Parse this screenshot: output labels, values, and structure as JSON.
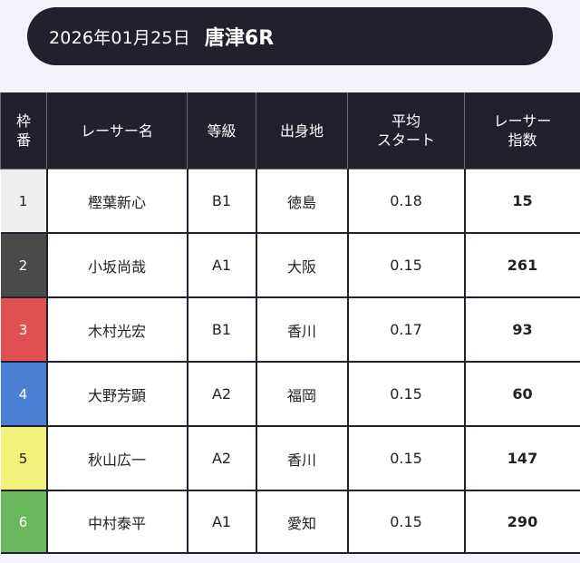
{
  "header": {
    "date": "2026年01月25日",
    "race": "唐津6R"
  },
  "columns": {
    "frame": [
      "枠",
      "番"
    ],
    "name": "レーサー名",
    "class": "等級",
    "hometown": "出身地",
    "avg_start": [
      "平均",
      "スタート"
    ],
    "index": [
      "レーサー",
      "指数"
    ]
  },
  "colors": {
    "header_bg": "#23202e",
    "frame_1": "#eeeeee",
    "frame_2": "#4a4a4a",
    "frame_3": "#e05050",
    "frame_4": "#4a7fd4",
    "frame_5": "#f0f07a",
    "frame_6": "#6ab85e"
  },
  "rows": [
    {
      "frame": "1",
      "name": "樫葉新心",
      "class": "B1",
      "hometown": "徳島",
      "avg_start": "0.18",
      "index": "15"
    },
    {
      "frame": "2",
      "name": "小坂尚哉",
      "class": "A1",
      "hometown": "大阪",
      "avg_start": "0.15",
      "index": "261"
    },
    {
      "frame": "3",
      "name": "木村光宏",
      "class": "B1",
      "hometown": "香川",
      "avg_start": "0.17",
      "index": "93"
    },
    {
      "frame": "4",
      "name": "大野芳顕",
      "class": "A2",
      "hometown": "福岡",
      "avg_start": "0.15",
      "index": "60"
    },
    {
      "frame": "5",
      "name": "秋山広一",
      "class": "A2",
      "hometown": "香川",
      "avg_start": "0.15",
      "index": "147"
    },
    {
      "frame": "6",
      "name": "中村泰平",
      "class": "A1",
      "hometown": "愛知",
      "avg_start": "0.15",
      "index": "290"
    }
  ]
}
